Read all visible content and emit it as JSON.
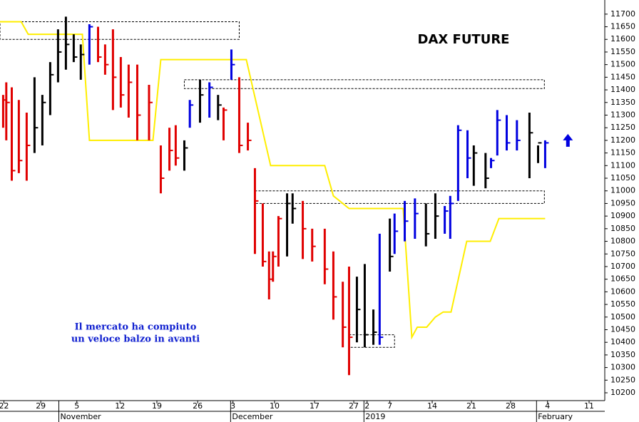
{
  "chart_data": {
    "type": "ohlc",
    "title": "DAX FUTURE",
    "annotation": [
      "Il mercato ha compiuto",
      "un veloce balzo in avanti"
    ],
    "xlim": [
      0,
      77.1
    ],
    "ylim": [
      10169,
      11756
    ],
    "yticks": [
      10200,
      10250,
      10300,
      10350,
      10400,
      10450,
      10500,
      10550,
      10600,
      10650,
      10700,
      10750,
      10800,
      10850,
      10900,
      10950,
      11000,
      11050,
      11100,
      11150,
      11200,
      11250,
      11300,
      11350,
      11400,
      11450,
      11500,
      11550,
      11600,
      11650,
      11700
    ],
    "xticks": [
      {
        "value": 0.5,
        "label": "22"
      },
      {
        "value": 5.2,
        "label": "29"
      },
      {
        "value": 9.8,
        "label": "5"
      },
      {
        "value": 15.3,
        "label": "12"
      },
      {
        "value": 20,
        "label": "19"
      },
      {
        "value": 25.2,
        "label": "26"
      },
      {
        "value": 29.7,
        "label": "3"
      },
      {
        "value": 35,
        "label": "10"
      },
      {
        "value": 40.1,
        "label": "17"
      },
      {
        "value": 45.1,
        "label": "27"
      },
      {
        "value": 46.8,
        "label": "2"
      },
      {
        "value": 49.7,
        "label": "7"
      },
      {
        "value": 55.1,
        "label": "14"
      },
      {
        "value": 60.1,
        "label": "21"
      },
      {
        "value": 65.1,
        "label": "28"
      },
      {
        "value": 69.8,
        "label": "4"
      },
      {
        "value": 75.1,
        "label": "11"
      }
    ],
    "month_ticks": [
      {
        "value": 7.5,
        "label": "November"
      },
      {
        "value": 29.4,
        "label": "December"
      },
      {
        "value": 46.4,
        "label": "2019"
      },
      {
        "value": 68.4,
        "label": "February"
      }
    ],
    "bars": {
      "x": [
        0.4,
        0.8,
        1.5,
        2.4,
        3.4,
        4.4,
        5.4,
        6.4,
        7.4,
        8.4,
        9.4,
        10.3,
        11.4,
        12.5,
        13.4,
        14.4,
        15.4,
        16.4,
        17.5,
        19,
        20.5,
        21.6,
        22.4,
        23.5,
        24.2,
        25.5,
        26.7,
        27.8,
        28.5,
        29.5,
        30.5,
        31.6,
        32.5,
        33.5,
        34.3,
        34.8,
        35.5,
        36.6,
        37.3,
        38.6,
        39.8,
        41.4,
        42.5,
        43.7,
        44.5,
        45.5,
        46.5,
        47.6,
        48.4,
        49.7,
        50.3,
        51.6,
        52.9,
        54.3,
        55.5,
        56.7,
        57.4,
        58.4,
        59.6,
        60.4,
        61.9,
        62.6,
        63.4,
        64.6,
        65.9,
        67.5,
        68.6,
        69.5
      ],
      "high": [
        11380,
        11430,
        11410,
        11360,
        11310,
        11450,
        11380,
        11510,
        11640,
        11690,
        11620,
        11580,
        11660,
        11650,
        11580,
        11640,
        11530,
        11500,
        11500,
        11420,
        11180,
        11250,
        11260,
        11200,
        11360,
        11440,
        11430,
        11380,
        11330,
        11560,
        11450,
        11270,
        11090,
        10950,
        10760,
        10760,
        10900,
        10990,
        10990,
        10960,
        10850,
        10850,
        10760,
        10640,
        10700,
        10660,
        10710,
        10530,
        10830,
        10890,
        10910,
        10960,
        10970,
        10950,
        10990,
        10940,
        10980,
        11260,
        11240,
        11180,
        11150,
        11130,
        11320,
        11300,
        11280,
        11310,
        11180,
        11200
      ],
      "low": [
        11250,
        11200,
        11040,
        11070,
        11040,
        11150,
        11180,
        11300,
        11430,
        11480,
        11510,
        11440,
        11500,
        11510,
        11460,
        11320,
        11330,
        11290,
        11200,
        11200,
        10990,
        11080,
        11100,
        11080,
        11250,
        11270,
        11290,
        11280,
        11200,
        11440,
        11150,
        11160,
        10750,
        10700,
        10570,
        10640,
        10700,
        10740,
        10870,
        10730,
        10720,
        10630,
        10490,
        10380,
        10270,
        10400,
        10380,
        10390,
        10390,
        10680,
        10750,
        10800,
        10810,
        10780,
        10810,
        10830,
        10810,
        10960,
        11050,
        11020,
        11010,
        11090,
        11140,
        11160,
        11160,
        11050,
        11110,
        11090
      ],
      "close": [
        11360,
        11350,
        11080,
        11120,
        11180,
        11250,
        11350,
        11460,
        11550,
        11580,
        11530,
        11540,
        11650,
        11530,
        11500,
        11450,
        11380,
        11430,
        11300,
        11350,
        11050,
        11160,
        11130,
        11170,
        11340,
        11380,
        11410,
        11340,
        11320,
        11500,
        11180,
        11200,
        10960,
        10720,
        10650,
        10740,
        10890,
        10950,
        10930,
        10850,
        10780,
        10690,
        10580,
        10460,
        10420,
        10530,
        10430,
        10440,
        10420,
        10740,
        10840,
        10880,
        10910,
        10830,
        10900,
        10920,
        10950,
        11240,
        11130,
        11150,
        11050,
        11120,
        11280,
        11190,
        11200,
        11230,
        11190,
        11190
      ],
      "colors": [
        "#e00000",
        "#e00000",
        "#e00000",
        "#e00000",
        "#e00000",
        "#000000",
        "#000000",
        "#000000",
        "#000000",
        "#000000",
        "#000000",
        "#000000",
        "#0000e0",
        "#e00000",
        "#e00000",
        "#e00000",
        "#e00000",
        "#e00000",
        "#e00000",
        "#e00000",
        "#e00000",
        "#e00000",
        "#e00000",
        "#000000",
        "#0000e0",
        "#000000",
        "#0000e0",
        "#000000",
        "#e00000",
        "#0000e0",
        "#e00000",
        "#e00000",
        "#e00000",
        "#e00000",
        "#e00000",
        "#e00000",
        "#e00000",
        "#000000",
        "#000000",
        "#e00000",
        "#e00000",
        "#e00000",
        "#e00000",
        "#e00000",
        "#e00000",
        "#000000",
        "#000000",
        "#000000",
        "#0000e0",
        "#000000",
        "#0000e0",
        "#0000e0",
        "#0000e0",
        "#000000",
        "#000000",
        "#0000e0",
        "#0000e0",
        "#0000e0",
        "#0000e0",
        "#000000",
        "#000000",
        "#0000e0",
        "#0000e0",
        "#0000e0",
        "#0000e0",
        "#000000",
        "#000000",
        "#0000e0"
      ]
    },
    "stop_line": {
      "color": "#ffee00",
      "x": [
        0,
        2.7,
        3.6,
        10.5,
        11.4,
        19.5,
        20.5,
        31.4,
        34.5,
        41.4,
        42.5,
        44.5,
        51.4,
        52.5,
        53.2,
        54.4,
        55.5,
        56.5,
        57.5,
        59.5,
        62.5,
        63.6,
        69.5
      ],
      "values": [
        11670,
        11670,
        11620,
        11620,
        11200,
        11200,
        11520,
        11520,
        11100,
        11100,
        10980,
        10930,
        10930,
        10420,
        10460,
        10460,
        10500,
        10520,
        10520,
        10800,
        10800,
        10890,
        10890
      ]
    },
    "zones": [
      {
        "x": [
          0,
          30.5
        ],
        "values": [
          11600,
          11670
        ]
      },
      {
        "x": [
          23.5,
          69.4
        ],
        "values": [
          11405,
          11440
        ]
      },
      {
        "x": [
          32.5,
          69.4
        ],
        "values": [
          10950,
          11000
        ]
      },
      {
        "x": [
          44.5,
          50.3
        ],
        "values": [
          10380,
          10430
        ]
      }
    ],
    "signal": {
      "direction": "up",
      "color": "#0000e0",
      "x": 72.4,
      "value": 11200
    }
  }
}
